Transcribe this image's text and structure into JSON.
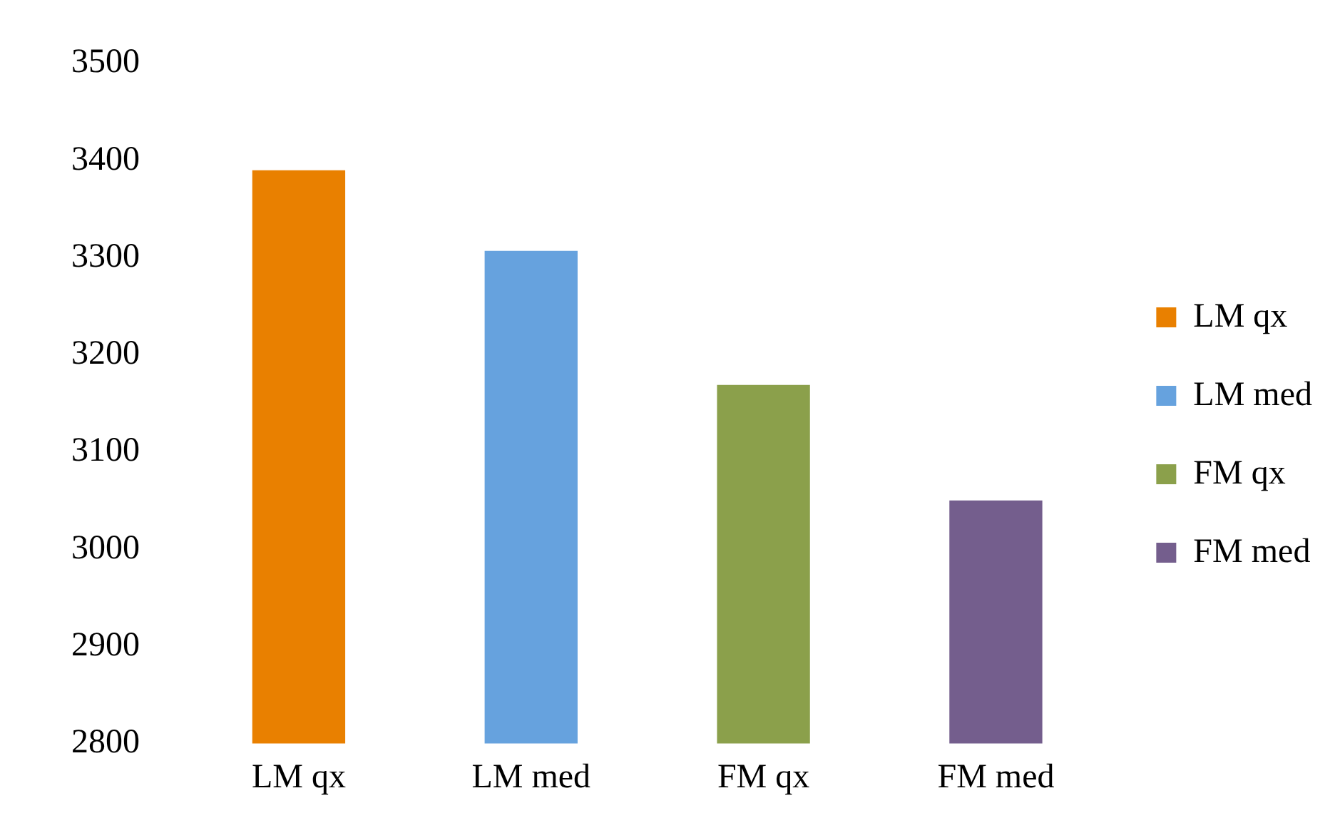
{
  "chart_data": {
    "type": "bar",
    "categories": [
      "LM qx",
      "LM med",
      "FM qx",
      "FM med"
    ],
    "series": [
      {
        "name": "LM qx",
        "color": "#e98000",
        "values": [
          3390,
          null,
          null,
          null
        ]
      },
      {
        "name": "LM med",
        "color": "#66a2de",
        "values": [
          null,
          3307,
          null,
          null
        ]
      },
      {
        "name": "FM qx",
        "color": "#8ba04b",
        "values": [
          null,
          null,
          3169,
          null
        ]
      },
      {
        "name": "FM med",
        "color": "#745e8d",
        "values": [
          null,
          null,
          null,
          3050
        ]
      }
    ],
    "ylim": [
      2800,
      3500
    ],
    "yticks": [
      2800,
      2900,
      3000,
      3100,
      3200,
      3300,
      3400,
      3500
    ],
    "grid": false,
    "legend": "right"
  }
}
